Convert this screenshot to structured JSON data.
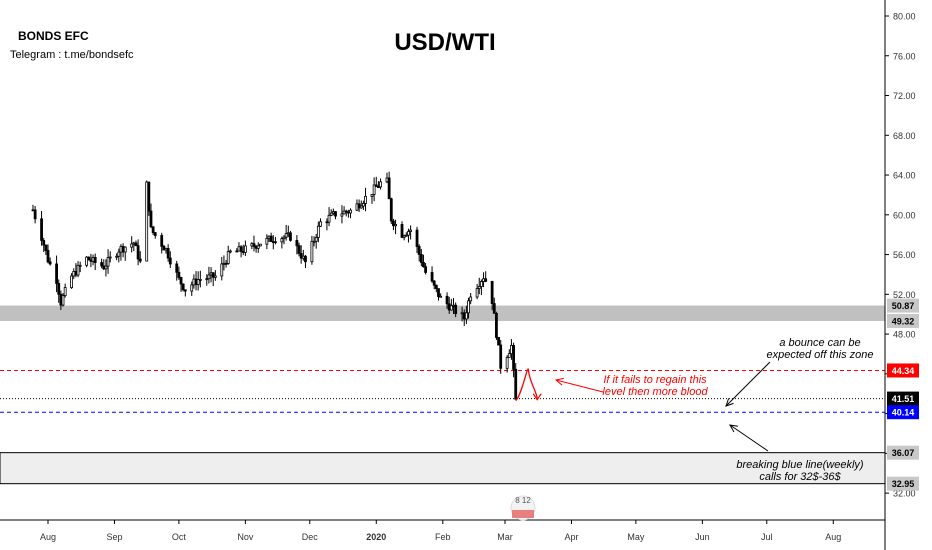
{
  "header": {
    "brand": "BONDS EFC",
    "telegram": "Telegram : t.me/bondsefc",
    "title": "USD/WTI"
  },
  "chart_data": {
    "type": "candlestick",
    "title": "USD/WTI",
    "x_axis_labels": [
      "Aug",
      "Sep",
      "Oct",
      "Nov",
      "Dec",
      "2020",
      "Feb",
      "Mar",
      "Apr",
      "May",
      "Jun",
      "Jul",
      "Aug"
    ],
    "y_ticks": [
      32.0,
      36.0,
      40.0,
      44.0,
      48.0,
      52.0,
      56.0,
      60.0,
      64.0,
      68.0,
      72.0,
      76.0,
      80.0
    ],
    "ylim": [
      29.5,
      82.5
    ],
    "grid": false,
    "price_path": [
      {
        "date": "2019-07-25",
        "close": 60.5
      },
      {
        "date": "2019-07-29",
        "close": 57.8
      },
      {
        "date": "2019-08-01",
        "close": 55.5
      },
      {
        "date": "2019-08-05",
        "close": 53.5
      },
      {
        "date": "2019-08-07",
        "close": 51.2
      },
      {
        "date": "2019-08-12",
        "close": 53.8
      },
      {
        "date": "2019-08-19",
        "close": 55.6
      },
      {
        "date": "2019-08-27",
        "close": 54.8
      },
      {
        "date": "2019-09-03",
        "close": 56.5
      },
      {
        "date": "2019-09-10",
        "close": 57.2
      },
      {
        "date": "2019-09-13",
        "close": 55.2
      },
      {
        "date": "2019-09-16",
        "close": 63.0
      },
      {
        "date": "2019-09-18",
        "close": 58.5
      },
      {
        "date": "2019-09-25",
        "close": 56.5
      },
      {
        "date": "2019-10-01",
        "close": 53.5
      },
      {
        "date": "2019-10-04",
        "close": 52.5
      },
      {
        "date": "2019-10-10",
        "close": 53.5
      },
      {
        "date": "2019-10-18",
        "close": 53.8
      },
      {
        "date": "2019-10-25",
        "close": 56.2
      },
      {
        "date": "2019-11-01",
        "close": 56.5
      },
      {
        "date": "2019-11-08",
        "close": 57.2
      },
      {
        "date": "2019-11-15",
        "close": 57.7
      },
      {
        "date": "2019-11-22",
        "close": 57.8
      },
      {
        "date": "2019-11-29",
        "close": 55.2
      },
      {
        "date": "2019-12-06",
        "close": 59.2
      },
      {
        "date": "2019-12-13",
        "close": 60.1
      },
      {
        "date": "2019-12-20",
        "close": 60.4
      },
      {
        "date": "2019-12-27",
        "close": 61.7
      },
      {
        "date": "2020-01-03",
        "close": 63.2
      },
      {
        "date": "2020-01-06",
        "close": 63.3
      },
      {
        "date": "2020-01-08",
        "close": 59.6
      },
      {
        "date": "2020-01-13",
        "close": 58.1
      },
      {
        "date": "2020-01-17",
        "close": 58.5
      },
      {
        "date": "2020-01-24",
        "close": 54.2
      },
      {
        "date": "2020-01-31",
        "close": 51.6
      },
      {
        "date": "2020-02-07",
        "close": 50.3
      },
      {
        "date": "2020-02-11",
        "close": 49.6
      },
      {
        "date": "2020-02-14",
        "close": 52.1
      },
      {
        "date": "2020-02-20",
        "close": 53.8
      },
      {
        "date": "2020-02-21",
        "close": 53.4
      },
      {
        "date": "2020-02-24",
        "close": 51.4
      },
      {
        "date": "2020-02-28",
        "close": 44.8
      },
      {
        "date": "2020-03-04",
        "close": 46.8
      },
      {
        "date": "2020-03-06",
        "close": 41.3
      }
    ],
    "projection": [
      {
        "date": "2020-03-06",
        "value": 41.3
      },
      {
        "date": "2020-03-09",
        "value": 41.9
      },
      {
        "date": "2020-03-12",
        "value": 44.3
      },
      {
        "date": "2020-03-16",
        "value": 41.5
      }
    ],
    "levels": [
      {
        "label": "50.87",
        "value": 50.87,
        "color": "#808080"
      },
      {
        "label": "49.32",
        "value": 49.32,
        "color": "#808080"
      },
      {
        "label": "44.34",
        "value": 44.34,
        "color": "#ff0000",
        "line": "red-dashed"
      },
      {
        "label": "41.51",
        "value": 41.51,
        "color": "#000000",
        "line": "black-dotted"
      },
      {
        "label": "40.14",
        "value": 40.14,
        "color": "#0000ff",
        "line": "blue-dashed"
      },
      {
        "label": "36.07",
        "value": 36.07,
        "color": "#808080"
      },
      {
        "label": "32.95",
        "value": 32.95,
        "color": "#808080"
      }
    ],
    "zones": [
      {
        "from": 49.32,
        "to": 50.87,
        "color": "#c0c0c0"
      },
      {
        "from": 32.95,
        "to": 36.07,
        "color": "#eeeeee"
      }
    ],
    "annotations": [
      {
        "lines": [
          "If it fails to regain this",
          "level then more blood"
        ],
        "color": "#ff0000"
      },
      {
        "lines": [
          "a bounce can be",
          "expected off this zone"
        ],
        "color": "#000000"
      },
      {
        "lines": [
          "breaking blue line(weekly)",
          "calls for 32$-36$"
        ],
        "color": "#000000"
      }
    ],
    "watermark_text": "8 12"
  },
  "colors": {
    "candle": "#000000",
    "red_line": "#ff0000",
    "blue_line": "#0000ff",
    "zone_dark": "#c0c0c0",
    "zone_light": "#eeeeee"
  }
}
